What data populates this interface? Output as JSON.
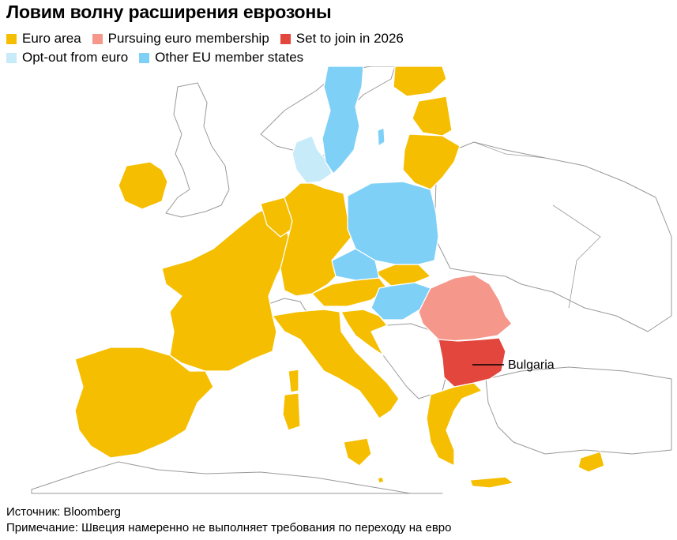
{
  "title": "Ловим волну расширения еврозоны",
  "legend": {
    "row1": [
      {
        "label": "Euro area",
        "color": "#f5be00"
      },
      {
        "label": "Pursuing euro membership",
        "color": "#f5978a"
      },
      {
        "label": "Set to join in 2026",
        "color": "#e2463c"
      }
    ],
    "row2": [
      {
        "label": "Opt-out from euro",
        "color": "#c8ebfa"
      },
      {
        "label": "Other EU member states",
        "color": "#7fd0f6"
      }
    ]
  },
  "map": {
    "callout": "Bulgaria"
  },
  "footer": {
    "source": "Источник: Bloomberg",
    "note": "Примечание: Швеция намеренно не выполняет требования по переходу на евро"
  }
}
